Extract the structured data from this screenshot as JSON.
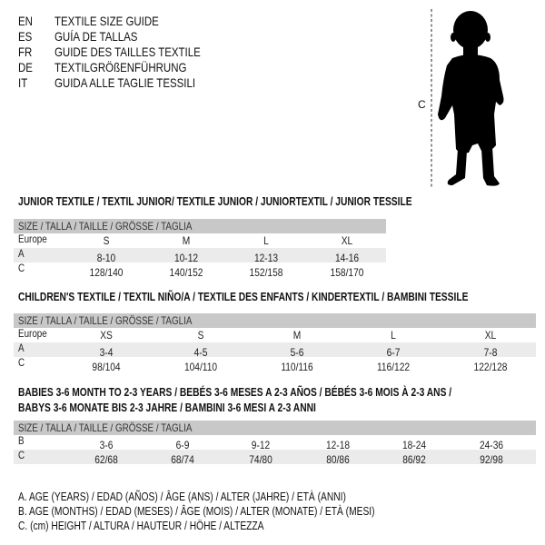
{
  "header": {
    "languages": [
      {
        "code": "EN",
        "title": "TEXTILE SIZE GUIDE"
      },
      {
        "code": "ES",
        "title": "GUÍA DE TALLAS"
      },
      {
        "code": "FR",
        "title": "GUIDE DES TAILLES TEXTILE"
      },
      {
        "code": "DE",
        "title": "TEXTILGRÖßENFÜHRUNG"
      },
      {
        "code": "IT",
        "title": "GUIDA ALLE TAGLIE TESSILI"
      }
    ]
  },
  "figure": {
    "measure_label": "C",
    "icon": "baby-silhouette-icon"
  },
  "tables": [
    {
      "title": [
        "JUNIOR TEXTILE / TEXTIL JUNIOR/ TEXTILE JUNIOR / JUNIORTEXTIL / JUNIOR TESSILE"
      ],
      "header": "SIZE / TALLA / TAILLE / GRÖSSE / TAGLIA",
      "rows": [
        {
          "label": "Europe",
          "values": [
            "S",
            "M",
            "L",
            "XL"
          ]
        },
        {
          "label": "A",
          "values": [
            "8-10",
            "10-12",
            "12-13",
            "14-16"
          ]
        },
        {
          "label": "C",
          "values": [
            "128/140",
            "140/152",
            "152/158",
            "158/170"
          ]
        }
      ]
    },
    {
      "title": [
        "CHILDREN'S TEXTILE / TEXTIL NIÑO/A / TEXTILE DES ENFANTS / KINDERTEXTIL / BAMBINI TESSILE"
      ],
      "header": "SIZE / TALLA / TAILLE / GRÖSSE / TAGLIA",
      "rows": [
        {
          "label": "Europe",
          "values": [
            "XS",
            "S",
            "M",
            "L",
            "XL"
          ]
        },
        {
          "label": "A",
          "values": [
            "3-4",
            "4-5",
            "5-6",
            "6-7",
            "7-8"
          ]
        },
        {
          "label": "C",
          "values": [
            "98/104",
            "104/110",
            "110/116",
            "116/122",
            "122/128"
          ]
        }
      ]
    },
    {
      "title": [
        "BABIES 3-6 MONTH TO 2-3 YEARS / BEBÉS 3-6 MESES A 2-3 AÑOS / BÉBÉS 3-6 MOIS À 2-3 ANS /",
        "BABYS 3-6 MONATE BIS 2-3 JAHRE / BAMBINI 3-6 MESI A 2-3 ANNI"
      ],
      "header": "SIZE / TALLA / TAILLE / GRÖSSE / TAGLIA",
      "rows": [
        {
          "label": "B",
          "values": [
            "3-6",
            "6-9",
            "9-12",
            "12-18",
            "18-24",
            "24-36"
          ]
        },
        {
          "label": "C",
          "values": [
            "62/68",
            "68/74",
            "74/80",
            "80/86",
            "86/92",
            "92/98"
          ]
        }
      ]
    }
  ],
  "legend": [
    "A. AGE (YEARS) / EDAD (AÑOS) / ÂGE (ANS) / ALTER (JAHRE) / ETÀ (ANNI)",
    "B. AGE (MONTHS) / EDAD (MESES) / ÂGE (MOIS) / ALTER (MONATE) / ETÀ (MESI)",
    "C. (cm) HEIGHT / ALTURA / HAUTEUR / HÖHE / ALTEZZA"
  ]
}
